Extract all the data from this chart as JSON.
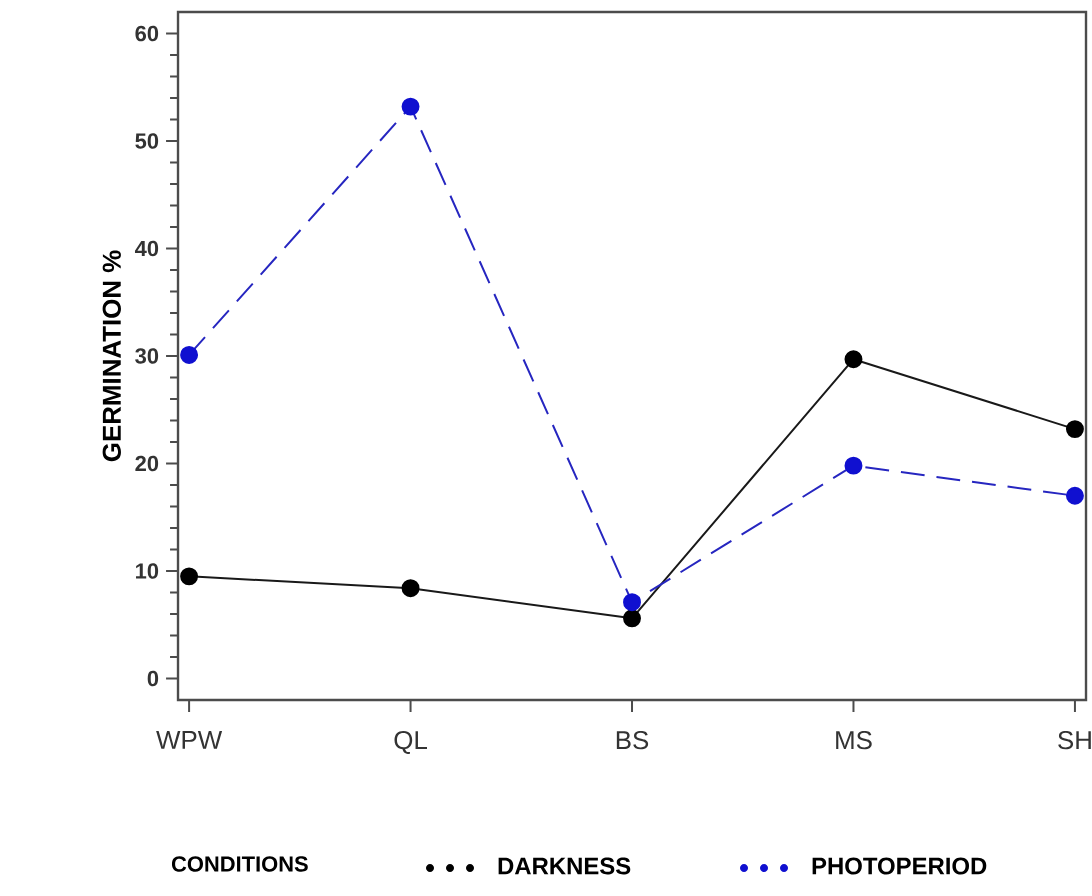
{
  "chart_data": {
    "type": "line",
    "ylabel": "GERMINATION %",
    "legend_title": "CONDITIONS",
    "categories": [
      "WPW",
      "QL",
      "BS",
      "MS",
      "SH"
    ],
    "series": [
      {
        "name": "DARKNESS",
        "color": "#000000",
        "line_style": "solid",
        "values": [
          9.5,
          8.4,
          5.6,
          29.7,
          23.2
        ]
      },
      {
        "name": "PHOTOPERIOD",
        "color": "#1010d0",
        "line_style": "dashed",
        "values": [
          30.1,
          53.2,
          7.1,
          19.8,
          17.0
        ]
      }
    ],
    "ylim": [
      -2,
      62
    ],
    "yticks": [
      0,
      10,
      20,
      30,
      40,
      50,
      60
    ],
    "marker": "circle",
    "legend": "bottom",
    "grid": false
  }
}
